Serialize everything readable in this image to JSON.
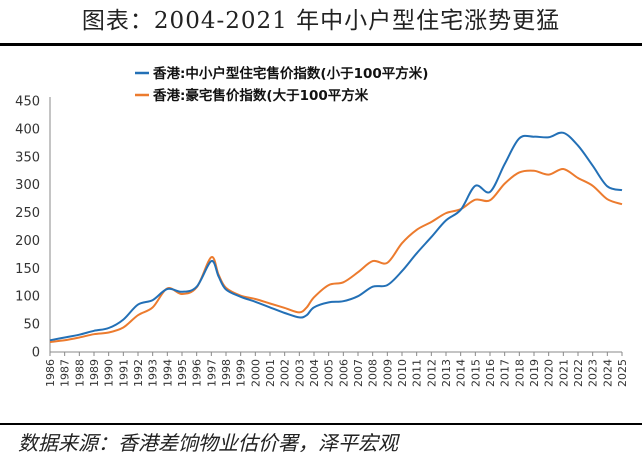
{
  "page": {
    "title": "图表：2004-2021 年中小户型住宅涨势更猛",
    "source": "数据来源：香港差饷物业估价署，泽平宏观"
  },
  "chart_data": {
    "type": "line",
    "title": "",
    "xlabel": "",
    "ylabel": "",
    "ylim": [
      0,
      450
    ],
    "yticks": [
      0,
      50,
      100,
      150,
      200,
      250,
      300,
      350,
      400,
      450
    ],
    "xlim": [
      1986,
      2025
    ],
    "xticks": [
      "1986",
      "1987",
      "1988",
      "1989",
      "1990",
      "1991",
      "1992",
      "1993",
      "1994",
      "1995",
      "1996",
      "1997",
      "1998",
      "1999",
      "2000",
      "2001",
      "2002",
      "2003",
      "2004",
      "2005",
      "2006",
      "2007",
      "2008",
      "2009",
      "2010",
      "2011",
      "2012",
      "2013",
      "2014",
      "2015",
      "2016",
      "2017",
      "2018",
      "2019",
      "2020",
      "2021",
      "2022",
      "2023",
      "2024",
      "2025"
    ],
    "grid": false,
    "legend_position": "top-center",
    "series": [
      {
        "name": "香港:中小户型住宅售价指数(小于100平方米)",
        "color": "#2370b6",
        "points": [
          [
            1986,
            21
          ],
          [
            1987,
            26
          ],
          [
            1988,
            31
          ],
          [
            1989,
            38
          ],
          [
            1990,
            43
          ],
          [
            1991,
            58
          ],
          [
            1992,
            85
          ],
          [
            1993,
            93
          ],
          [
            1994,
            113
          ],
          [
            1995,
            108
          ],
          [
            1996,
            117
          ],
          [
            1997,
            163
          ],
          [
            1997.5,
            135
          ],
          [
            1998,
            112
          ],
          [
            1999,
            99
          ],
          [
            2000,
            90
          ],
          [
            2001,
            80
          ],
          [
            2002,
            70
          ],
          [
            2003,
            62
          ],
          [
            2003.5,
            66
          ],
          [
            2004,
            80
          ],
          [
            2005,
            89
          ],
          [
            2006,
            91
          ],
          [
            2007,
            100
          ],
          [
            2008,
            117
          ],
          [
            2009,
            120
          ],
          [
            2010,
            145
          ],
          [
            2011,
            177
          ],
          [
            2012,
            206
          ],
          [
            2013,
            236
          ],
          [
            2014,
            255
          ],
          [
            2015,
            298
          ],
          [
            2016,
            287
          ],
          [
            2017,
            337
          ],
          [
            2018,
            383
          ],
          [
            2019,
            386
          ],
          [
            2020,
            385
          ],
          [
            2021,
            393
          ],
          [
            2022,
            370
          ],
          [
            2023,
            334
          ],
          [
            2024,
            297
          ],
          [
            2025,
            290
          ]
        ]
      },
      {
        "name": "香港:豪宅售价指数(大于100平方米",
        "color": "#ec7b2e",
        "points": [
          [
            1986,
            18
          ],
          [
            1987,
            21
          ],
          [
            1988,
            26
          ],
          [
            1989,
            32
          ],
          [
            1990,
            35
          ],
          [
            1991,
            44
          ],
          [
            1992,
            66
          ],
          [
            1993,
            80
          ],
          [
            1994,
            114
          ],
          [
            1995,
            104
          ],
          [
            1996,
            116
          ],
          [
            1997,
            170
          ],
          [
            1997.5,
            138
          ],
          [
            1998,
            115
          ],
          [
            1999,
            101
          ],
          [
            2000,
            95
          ],
          [
            2001,
            87
          ],
          [
            2002,
            79
          ],
          [
            2003,
            71
          ],
          [
            2003.5,
            80
          ],
          [
            2004,
            98
          ],
          [
            2005,
            120
          ],
          [
            2006,
            125
          ],
          [
            2007,
            143
          ],
          [
            2008,
            163
          ],
          [
            2009,
            160
          ],
          [
            2010,
            195
          ],
          [
            2011,
            219
          ],
          [
            2012,
            233
          ],
          [
            2013,
            249
          ],
          [
            2014,
            256
          ],
          [
            2015,
            273
          ],
          [
            2016,
            272
          ],
          [
            2017,
            302
          ],
          [
            2018,
            322
          ],
          [
            2019,
            325
          ],
          [
            2020,
            318
          ],
          [
            2021,
            328
          ],
          [
            2022,
            312
          ],
          [
            2023,
            298
          ],
          [
            2024,
            274
          ],
          [
            2025,
            265
          ]
        ]
      }
    ]
  }
}
